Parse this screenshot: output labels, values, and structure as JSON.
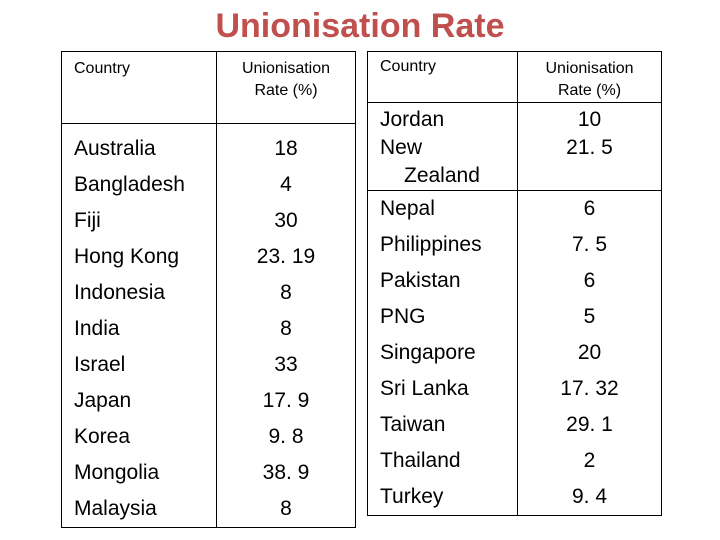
{
  "title": "Unionisation Rate",
  "headers": {
    "country": "Country",
    "rate_line1": "Unionisation",
    "rate_line2": "Rate (%)"
  },
  "left_table": [
    {
      "country": "Australia",
      "rate": "18"
    },
    {
      "country": "Bangladesh",
      "rate": "4"
    },
    {
      "country": "Fiji",
      "rate": "30"
    },
    {
      "country": "Hong Kong",
      "rate": "23. 19"
    },
    {
      "country": "Indonesia",
      "rate": "8"
    },
    {
      "country": "India",
      "rate": "8"
    },
    {
      "country": "Israel",
      "rate": "33"
    },
    {
      "country": "Japan",
      "rate": "17. 9"
    },
    {
      "country": "Korea",
      "rate": "9. 8"
    },
    {
      "country": "Mongolia",
      "rate": "38. 9"
    },
    {
      "country": "Malaysia",
      "rate": "8"
    }
  ],
  "right_table": [
    {
      "country": "Jordan",
      "rate": "10"
    },
    {
      "country_line1": "New",
      "country_line2": "Zealand",
      "rate": "21. 5"
    },
    {
      "country": "Nepal",
      "rate": "6"
    },
    {
      "country": "Philippines",
      "rate": "7. 5"
    },
    {
      "country": "Pakistan",
      "rate": "6"
    },
    {
      "country": "PNG",
      "rate": "5"
    },
    {
      "country": "Singapore",
      "rate": "20"
    },
    {
      "country": "Sri Lanka",
      "rate": "17. 32"
    },
    {
      "country": "Taiwan",
      "rate": "29. 1"
    },
    {
      "country": "Thailand",
      "rate": "2"
    },
    {
      "country": "Turkey",
      "rate": "9. 4"
    }
  ]
}
